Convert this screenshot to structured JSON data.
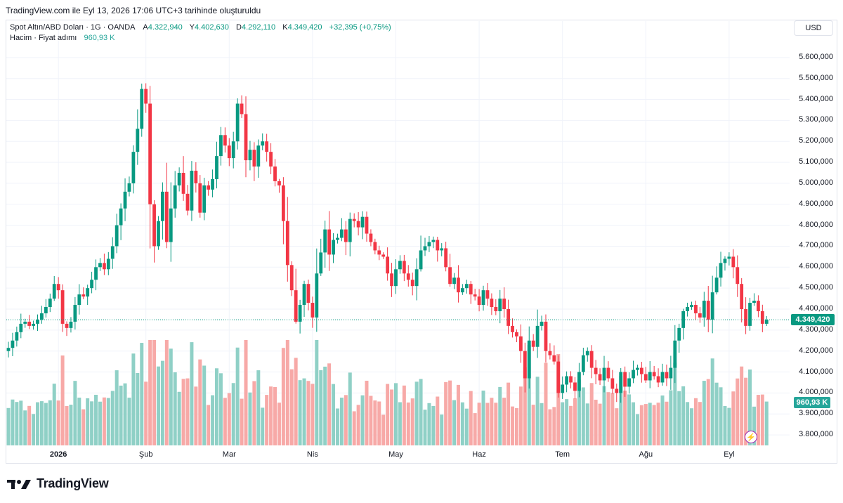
{
  "header": {
    "snapshot_text": "TradingView.com ile Eyl 13, 2026 17:06 UTC+3 tarihinde oluşturuldu"
  },
  "legend": {
    "symbol": "Spot Altın/ABD Doları · 1G · OANDA",
    "open_label": "A",
    "open": "4.322,940",
    "high_label": "Y",
    "high": "4.402,630",
    "low_label": "D",
    "low": "4.292,110",
    "close_label": "K",
    "close": "4.349,420",
    "change": "+32,395 (+0,75%)",
    "volume_label": "Hacim · Fiyat adımı",
    "volume_value": "960,93 K"
  },
  "currency_button": "USD",
  "last_price_badge": "4.349,420",
  "volume_badge": "960,93 K",
  "brand": {
    "name": "TradingView"
  },
  "colors": {
    "up": "#089981",
    "down": "#f23645",
    "vol_up": "#8fd0c6",
    "vol_down": "#f7a9a7",
    "last_price": "#089981"
  },
  "icons": {
    "alert": "lightning-icon",
    "logo": "tradingview-logo-icon"
  },
  "chart_data": {
    "type": "candlestick",
    "title": "Spot Altın/ABD Doları · 1G · OANDA",
    "ylim": [
      3750000,
      5700000
    ],
    "y_ticks": [
      {
        "value": 5600000,
        "label": "5.600,000"
      },
      {
        "value": 5500000,
        "label": "5.500,000"
      },
      {
        "value": 5400000,
        "label": "5.400,000"
      },
      {
        "value": 5300000,
        "label": "5.300,000"
      },
      {
        "value": 5200000,
        "label": "5.200,000"
      },
      {
        "value": 5100000,
        "label": "5.100,000"
      },
      {
        "value": 5000000,
        "label": "5.000,000"
      },
      {
        "value": 4900000,
        "label": "4.900,000"
      },
      {
        "value": 4800000,
        "label": "4.800,000"
      },
      {
        "value": 4700000,
        "label": "4.700,000"
      },
      {
        "value": 4600000,
        "label": "4.600,000"
      },
      {
        "value": 4500000,
        "label": "4.500,000"
      },
      {
        "value": 4400000,
        "label": "4.400,000"
      },
      {
        "value": 4300000,
        "label": "4.300,000"
      },
      {
        "value": 4200000,
        "label": "4.200,000"
      },
      {
        "value": 4100000,
        "label": "4.100,000"
      },
      {
        "value": 4000000,
        "label": "4.000,000"
      },
      {
        "value": 3900000,
        "label": "3.900,000"
      },
      {
        "value": 3800000,
        "label": "3.800,000"
      }
    ],
    "x_labels": [
      {
        "label": "2026",
        "index": 12,
        "bold": true
      },
      {
        "label": "Şub",
        "index": 33,
        "bold": false
      },
      {
        "label": "Mar",
        "index": 53,
        "bold": false
      },
      {
        "label": "Nis",
        "index": 73,
        "bold": false
      },
      {
        "label": "May",
        "index": 93,
        "bold": false
      },
      {
        "label": "Haz",
        "index": 113,
        "bold": false
      },
      {
        "label": "Tem",
        "index": 133,
        "bold": false
      },
      {
        "label": "Ağu",
        "index": 153,
        "bold": false
      },
      {
        "label": "Eyl",
        "index": 173,
        "bold": false
      }
    ],
    "last_price": 4349420,
    "grid": true,
    "series_close": [
      4215000,
      4250000,
      4290000,
      4330000,
      4340000,
      4320000,
      4330000,
      4350000,
      4380000,
      4410000,
      4450000,
      4520000,
      4490000,
      4330000,
      4310000,
      4340000,
      4420000,
      4470000,
      4460000,
      4500000,
      4540000,
      4600000,
      4620000,
      4590000,
      4640000,
      4700000,
      4800000,
      4880000,
      4960000,
      5000000,
      5150000,
      5260000,
      5450000,
      5380000,
      4900000,
      4700000,
      4820000,
      4960000,
      4720000,
      4880000,
      4990000,
      5050000,
      4950000,
      4870000,
      5060000,
      5000000,
      4860000,
      4990000,
      4970000,
      5020000,
      5130000,
      5230000,
      5180000,
      5120000,
      5200000,
      5380000,
      5330000,
      5110000,
      5160000,
      5080000,
      5180000,
      5200000,
      5150000,
      5080000,
      5010000,
      4990000,
      4820000,
      4610000,
      4490000,
      4340000,
      4420000,
      4520000,
      4430000,
      4360000,
      4570000,
      4670000,
      4780000,
      4660000,
      4730000,
      4740000,
      4780000,
      4720000,
      4830000,
      4820000,
      4790000,
      4840000,
      4760000,
      4720000,
      4680000,
      4660000,
      4650000,
      4570000,
      4510000,
      4590000,
      4630000,
      4570000,
      4540000,
      4510000,
      4590000,
      4680000,
      4700000,
      4720000,
      4730000,
      4680000,
      4690000,
      4600000,
      4520000,
      4550000,
      4480000,
      4500000,
      4520000,
      4470000,
      4460000,
      4420000,
      4490000,
      4450000,
      4410000,
      4390000,
      4450000,
      4400000,
      4320000,
      4290000,
      4270000,
      4200000,
      4070000,
      4250000,
      4220000,
      4320000,
      4340000,
      4200000,
      4180000,
      4150000,
      4000000,
      4040000,
      4080000,
      4050000,
      4010000,
      4100000,
      4180000,
      4200000,
      4120000,
      4090000,
      4060000,
      4120000,
      4070000,
      4020000,
      4000000,
      4100000,
      4030000,
      4070000,
      4110000,
      4120000,
      4090000,
      4060000,
      4100000,
      4080000,
      4050000,
      4100000,
      4070000,
      4120000,
      4250000,
      4310000,
      4390000,
      4410000,
      4420000,
      4380000,
      4360000,
      4440000,
      4350000,
      4480000,
      4550000,
      4620000,
      4640000,
      4650000,
      4600000,
      4520000,
      4400000,
      4320000,
      4430000,
      4440000,
      4390000,
      4330000,
      4349420
    ],
    "volume": {
      "unit": "K",
      "last": 960.93,
      "yscale_max": 2100
    }
  }
}
